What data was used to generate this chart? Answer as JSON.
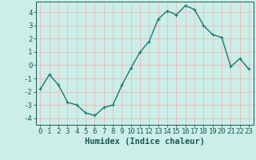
{
  "x": [
    0,
    1,
    2,
    3,
    4,
    5,
    6,
    7,
    8,
    9,
    10,
    11,
    12,
    13,
    14,
    15,
    16,
    17,
    18,
    19,
    20,
    21,
    22,
    23
  ],
  "y": [
    -1.8,
    -0.7,
    -1.5,
    -2.8,
    -3.0,
    -3.6,
    -3.8,
    -3.2,
    -3.0,
    -1.5,
    -0.2,
    1.0,
    1.8,
    3.5,
    4.1,
    3.8,
    4.5,
    4.2,
    3.0,
    2.3,
    2.1,
    -0.1,
    0.5,
    -0.3
  ],
  "line_color": "#1a7a6e",
  "marker": "+",
  "markersize": 3,
  "linewidth": 1.0,
  "xlabel": "Humidex (Indice chaleur)",
  "xlim": [
    -0.5,
    23.5
  ],
  "ylim": [
    -4.5,
    4.8
  ],
  "yticks": [
    -4,
    -3,
    -2,
    -1,
    0,
    1,
    2,
    3,
    4
  ],
  "xticks": [
    0,
    1,
    2,
    3,
    4,
    5,
    6,
    7,
    8,
    9,
    10,
    11,
    12,
    13,
    14,
    15,
    16,
    17,
    18,
    19,
    20,
    21,
    22,
    23
  ],
  "bg_color": "#cceee8",
  "grid_color": "#f0b8b8",
  "tick_fontsize": 6.5,
  "xlabel_fontsize": 7.5
}
